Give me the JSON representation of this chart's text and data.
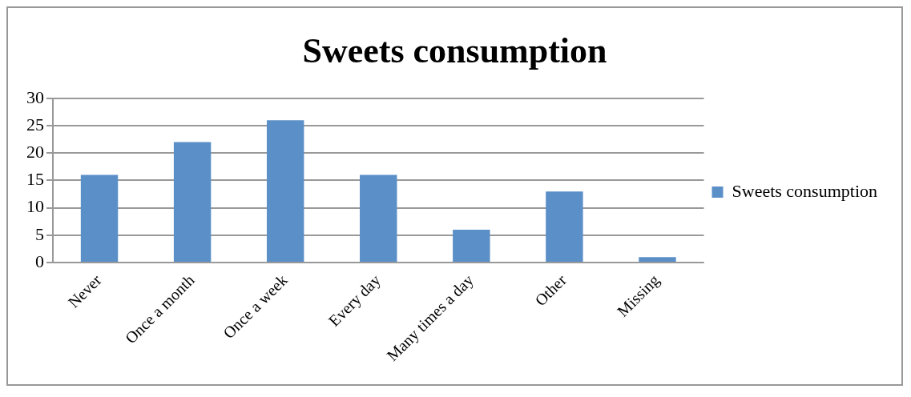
{
  "chart_data": {
    "type": "bar",
    "title": "Sweets consumption",
    "categories": [
      "Never",
      "Once a month",
      "Once a week",
      "Every day",
      "Many times a day",
      "Other",
      "Missing"
    ],
    "series": [
      {
        "name": "Sweets consumption",
        "color": "#5b8fc7",
        "values": [
          16,
          22,
          26,
          16,
          6,
          13,
          1
        ]
      }
    ],
    "ylim": [
      0,
      30
    ],
    "yticks": [
      0,
      5,
      10,
      15,
      20,
      25,
      30
    ],
    "grid": "y",
    "legend": "right"
  }
}
